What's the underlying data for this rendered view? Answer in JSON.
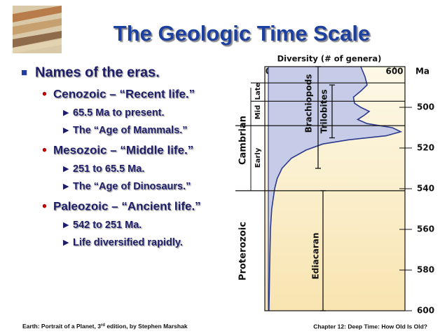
{
  "title": "The Geologic Time Scale",
  "intro": "Names of the eras.",
  "eras": [
    {
      "text": "Cenozoic – “Recent life.”",
      "subs": [
        "65.5 Ma to present.",
        "The “Age of Mammals.”"
      ]
    },
    {
      "text": "Mesozoic – “Middle life.”",
      "subs": [
        "251 to 65.5 Ma.",
        "The “Age of Dinosaurs.”"
      ]
    },
    {
      "text": "Paleozoic – “Ancient life.”",
      "subs": [
        "542 to 251 Ma.",
        "Life diversified rapidly."
      ]
    }
  ],
  "footer": {
    "left": [
      "Earth: Portrait of a Planet, 3",
      "rd",
      " edition, by Stephen Marshak"
    ],
    "right": "Chapter 12:  Deep Time:  How Old Is Old?"
  },
  "chart_data": {
    "type": "area",
    "title": "Diversity (# of genera)",
    "x_label": "Ma",
    "x": [
      480,
      485,
      489,
      492,
      495,
      498,
      500,
      502,
      504,
      506,
      508,
      510,
      512,
      514,
      516,
      518,
      521,
      525,
      530,
      535,
      540,
      550,
      560,
      580,
      600
    ],
    "values": [
      440,
      460,
      470,
      440,
      405,
      410,
      440,
      480,
      455,
      425,
      470,
      590,
      630,
      560,
      380,
      260,
      180,
      110,
      65,
      42,
      30,
      16,
      10,
      6,
      3
    ],
    "color": "#c6cce8",
    "line_color": "#2b3a8c",
    "xlim": [
      480,
      600
    ],
    "xticks": [
      500,
      520,
      540,
      560,
      580,
      600
    ],
    "ylim": [
      0,
      650
    ],
    "yticks": [
      0,
      200,
      400,
      600
    ],
    "boundaries": [
      488,
      497,
      509,
      541
    ],
    "period_labels": [
      "Late",
      "Mid",
      "Early",
      "Cambrian",
      "Proterozoic"
    ],
    "ranges": [
      {
        "name": "Brachiopods",
        "start": 480,
        "end": 530
      },
      {
        "name": "Trilobites",
        "start": 489,
        "end": 515
      },
      {
        "name": "Ediacaran",
        "start": 541,
        "end": 600
      }
    ]
  }
}
